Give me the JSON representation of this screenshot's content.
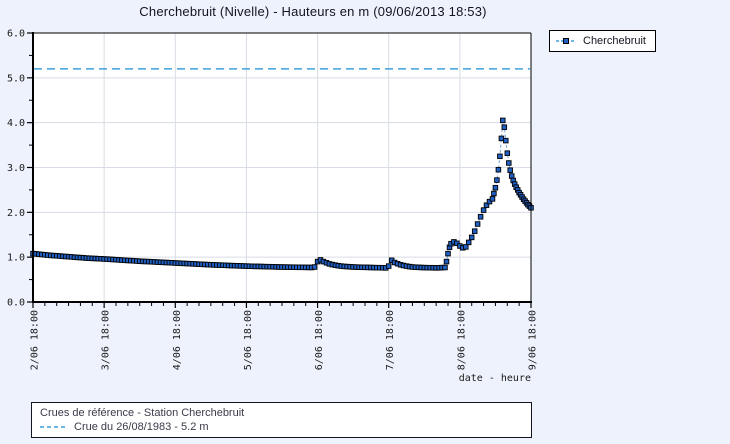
{
  "title": "Cherchebruit (Nivelle) - Hauteurs en m (09/06/2013 18:53)",
  "legend": {
    "label": "Cherchebruit"
  },
  "reference_box": {
    "line1": "Crues de référence - Station Cherchebruit",
    "line2": "Crue du 26/08/1983 - 5.2 m"
  },
  "colors": {
    "background": "#eef2fc",
    "plot_background": "#ffffff",
    "grid": "#d8dce4",
    "axis": "#000000",
    "text": "#1a1a1a",
    "marker_fill": "#2060c4",
    "marker_edge": "#000000",
    "series_line": "#7aa2dc",
    "reference_line": "#3fa0dc"
  },
  "chart_data": {
    "type": "line",
    "title": "Cherchebruit (Nivelle) - Hauteurs en m (09/06/2013 18:53)",
    "xlabel": "date - heure",
    "ylabel": "",
    "ylim": [
      0,
      6
    ],
    "x_span_hours": 168,
    "x_tick_labels": [
      "2/06 18:00",
      "3/06 18:00",
      "4/06 18:00",
      "5/06 18:00",
      "6/06 18:00",
      "7/06 18:00",
      "8/06 18:00",
      "9/06 18:00"
    ],
    "x_major_step_hours": 24,
    "x_minor_step_hours": 4,
    "y_tick_labels": [
      "0.0",
      "1.0",
      "2.0",
      "3.0",
      "4.0",
      "5.0",
      "6.0"
    ],
    "y_major_step": 1,
    "y_minor_step": 0.5,
    "grid": "major",
    "legend_position": "top-right",
    "reference_line": {
      "value": 5.2,
      "label": "Crue du 26/08/1983 - 5.2 m",
      "style": "dashed"
    },
    "series": [
      {
        "name": "Cherchebruit",
        "units": "m",
        "x_unit": "hours since 2/06 18:00",
        "resample_step_hours": 1,
        "points": [
          [
            0,
            1.08
          ],
          [
            6,
            1.04
          ],
          [
            12,
            1.01
          ],
          [
            18,
            0.98
          ],
          [
            24,
            0.96
          ],
          [
            36,
            0.91
          ],
          [
            48,
            0.87
          ],
          [
            60,
            0.83
          ],
          [
            72,
            0.8
          ],
          [
            84,
            0.78
          ],
          [
            94,
            0.77
          ],
          [
            95,
            0.78
          ],
          [
            96,
            0.9
          ],
          [
            97,
            0.94
          ],
          [
            98,
            0.9
          ],
          [
            100,
            0.85
          ],
          [
            102,
            0.82
          ],
          [
            104,
            0.8
          ],
          [
            108,
            0.78
          ],
          [
            114,
            0.77
          ],
          [
            119,
            0.76
          ],
          [
            120,
            0.8
          ],
          [
            121,
            0.93
          ],
          [
            122,
            0.88
          ],
          [
            124,
            0.83
          ],
          [
            126,
            0.8
          ],
          [
            128,
            0.78
          ],
          [
            131,
            0.77
          ],
          [
            136,
            0.76
          ],
          [
            139,
            0.77
          ],
          [
            139.5,
            0.9
          ],
          [
            140,
            1.08
          ],
          [
            140.5,
            1.22
          ],
          [
            141,
            1.3
          ],
          [
            142,
            1.34
          ],
          [
            143,
            1.31
          ],
          [
            144,
            1.25
          ],
          [
            145,
            1.21
          ],
          [
            146,
            1.23
          ],
          [
            147,
            1.33
          ],
          [
            148,
            1.44
          ],
          [
            149,
            1.58
          ],
          [
            150,
            1.74
          ],
          [
            151,
            1.9
          ],
          [
            152,
            2.05
          ],
          [
            153,
            2.16
          ],
          [
            154,
            2.24
          ],
          [
            155,
            2.3
          ],
          [
            155.5,
            2.42
          ],
          [
            156,
            2.55
          ],
          [
            156.5,
            2.72
          ],
          [
            157,
            2.95
          ],
          [
            157.5,
            3.25
          ],
          [
            158,
            3.65
          ],
          [
            158.5,
            4.05
          ],
          [
            159,
            3.9
          ],
          [
            159.5,
            3.6
          ],
          [
            160,
            3.32
          ],
          [
            160.5,
            3.1
          ],
          [
            161,
            2.94
          ],
          [
            161.5,
            2.81
          ],
          [
            162,
            2.71
          ],
          [
            162.5,
            2.63
          ],
          [
            163,
            2.56
          ],
          [
            163.5,
            2.5
          ],
          [
            164,
            2.44
          ],
          [
            164.5,
            2.39
          ],
          [
            165,
            2.34
          ],
          [
            165.5,
            2.29
          ],
          [
            166,
            2.25
          ],
          [
            166.5,
            2.21
          ],
          [
            167,
            2.17
          ],
          [
            167.5,
            2.14
          ],
          [
            168,
            2.1
          ]
        ]
      }
    ]
  }
}
